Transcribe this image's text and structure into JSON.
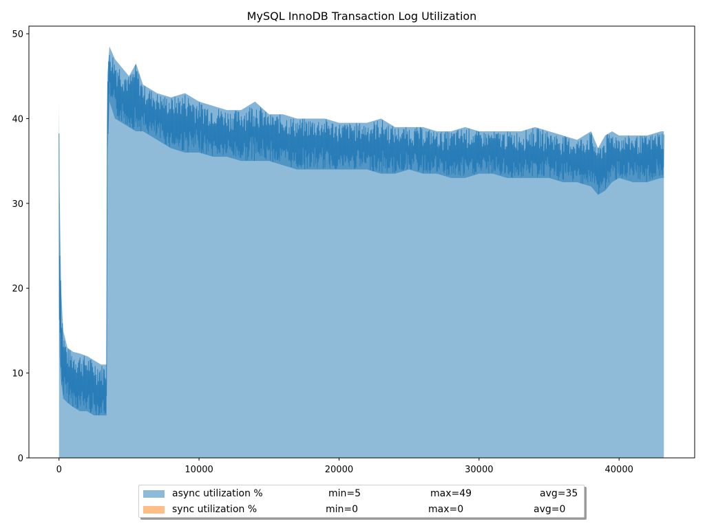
{
  "chart_data": {
    "type": "area",
    "title": "MySQL InnoDB Transaction Log Utilization",
    "xlabel": "",
    "ylabel": "",
    "xlim": [
      -2150,
      45400
    ],
    "ylim": [
      0,
      50.9
    ],
    "x_ticks": [
      0,
      10000,
      20000,
      30000,
      40000
    ],
    "y_ticks": [
      0,
      10,
      20,
      30,
      40,
      50
    ],
    "grid": false,
    "legend_position": "bottom-center",
    "series": [
      {
        "name": "async utilization %",
        "color": "#1f77b4",
        "fill_alpha": 0.5,
        "min": "min=5",
        "max": "max=49",
        "avg": "avg=35",
        "envelope_x": [
          0,
          40,
          150,
          300,
          600,
          1000,
          1500,
          2000,
          2500,
          3000,
          3400,
          3450,
          3600,
          4000,
          4500,
          5000,
          5500,
          6000,
          6500,
          7000,
          8000,
          9000,
          10000,
          11000,
          12000,
          13000,
          14000,
          15000,
          16000,
          17000,
          18000,
          19000,
          20000,
          21000,
          22000,
          23000,
          24000,
          25000,
          26000,
          27000,
          28000,
          29000,
          30000,
          31000,
          32000,
          33000,
          34000,
          35000,
          36000,
          37000,
          38000,
          38500,
          39000,
          39500,
          40000,
          41000,
          42000,
          43000,
          43200
        ],
        "upper": [
          42,
          32,
          20,
          15,
          13,
          12.5,
          12.3,
          12,
          11.5,
          11,
          11,
          45,
          48.5,
          47,
          46,
          45,
          46.5,
          44,
          43.5,
          43,
          42.5,
          43,
          42,
          41.5,
          41,
          41,
          42,
          40.5,
          40.5,
          40,
          40,
          40,
          39.5,
          39.5,
          39.5,
          40,
          39,
          39,
          39,
          38.5,
          38.5,
          39,
          38.5,
          38.5,
          38.5,
          38.5,
          39,
          38.5,
          38,
          37.5,
          38.5,
          36.5,
          38,
          38.5,
          38,
          38,
          38,
          38.5,
          38.5
        ],
        "lower": [
          18,
          12,
          9,
          7,
          6.5,
          6,
          5.5,
          5.5,
          5,
          5,
          5,
          35,
          42,
          40,
          39.5,
          39,
          38.5,
          38.5,
          38,
          37.5,
          36.5,
          36,
          36,
          35.5,
          35.5,
          35,
          35,
          35,
          34.5,
          34,
          34,
          34,
          34,
          34,
          34,
          33.5,
          33.5,
          34,
          33.5,
          33.5,
          33,
          33,
          33.5,
          33.5,
          33,
          33,
          33,
          33,
          32.5,
          32.5,
          32,
          31,
          31.5,
          32.5,
          33,
          32.5,
          32.5,
          33,
          33
        ]
      },
      {
        "name": "sync utilization %",
        "color": "#ff7f0e",
        "fill_alpha": 0.5,
        "min": "min=0",
        "max": "max=0",
        "avg": "avg=0",
        "values": [
          0
        ]
      }
    ]
  }
}
